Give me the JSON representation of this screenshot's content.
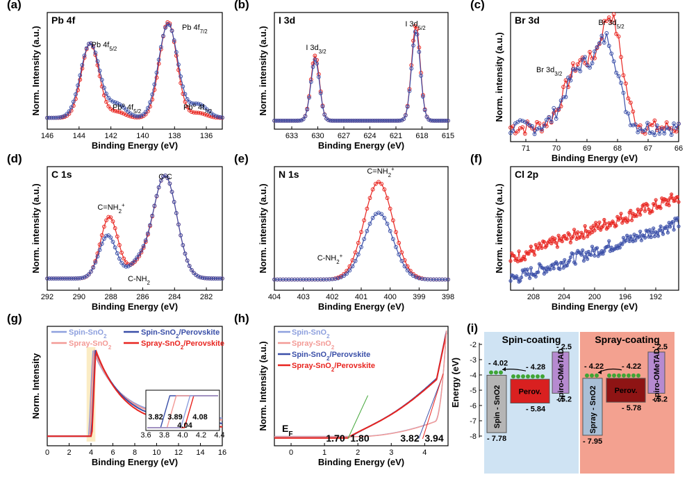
{
  "colors": {
    "red": "#e8241f",
    "blue": "#3a4fa8",
    "lightblue": "#8ea0de",
    "lightred": "#f39a96",
    "green": "#3fa535",
    "box": "#555555"
  },
  "chart_data": [
    {
      "panel": "(a)",
      "type": "line",
      "title": "Pb 4f",
      "xlabel": "Binding Energy (eV)",
      "ylabel": "Norm. Intensity (a.u.)",
      "xlim": [
        146,
        135
      ],
      "ylim": [
        0,
        1.05
      ],
      "xticks": [
        "146",
        "144",
        "142",
        "140",
        "138",
        "136"
      ],
      "annotations": [
        "Pb 4f5/2",
        "Pb 4f7/2",
        "Pbo 4f5/2",
        "Pbo 4f7/2"
      ],
      "series": [
        {
          "color": "red",
          "peaks": [
            [
              143.3,
              0.78,
              0.55
            ],
            [
              138.4,
              1.0,
              0.55
            ],
            [
              141.6,
              0.06,
              0.5
            ],
            [
              136.5,
              0.05,
              0.5
            ]
          ]
        },
        {
          "color": "blue",
          "peaks": [
            [
              143.3,
              0.78,
              0.6
            ],
            [
              138.4,
              0.98,
              0.6
            ],
            [
              141.6,
              0.14,
              0.55
            ],
            [
              136.5,
              0.14,
              0.55
            ]
          ]
        }
      ]
    },
    {
      "panel": "(b)",
      "type": "line",
      "title": "I 3d",
      "xlabel": "Binding Energy (eV)",
      "ylabel": "Norm. intensity (a.u.)",
      "xlim": [
        635,
        615
      ],
      "ylim": [
        0,
        1.05
      ],
      "xticks": [
        "633",
        "630",
        "627",
        "624",
        "621",
        "618",
        "615"
      ],
      "annotations": [
        "I 3d3/2",
        "I 3d5/2"
      ],
      "series": [
        {
          "color": "red",
          "peaks": [
            [
              630.3,
              0.68,
              0.5
            ],
            [
              618.7,
              1.0,
              0.5
            ]
          ]
        },
        {
          "color": "blue",
          "peaks": [
            [
              630.3,
              0.64,
              0.5
            ],
            [
              618.7,
              0.94,
              0.5
            ]
          ]
        }
      ]
    },
    {
      "panel": "(c)",
      "type": "line",
      "title": "Br 3d",
      "xlabel": "Binding Energy (eV)",
      "ylabel": "Norm. intensity (a.u.)",
      "xlim": [
        71.5,
        66
      ],
      "ylim": [
        0,
        1.05
      ],
      "xticks": [
        "71",
        "70",
        "69",
        "68",
        "67",
        "66"
      ],
      "annotations": [
        "Br 3d3/2",
        "Br 3d5/2"
      ],
      "series": [
        {
          "color": "red",
          "peaks": [
            [
              69.2,
              0.6,
              0.5
            ],
            [
              68.2,
              0.95,
              0.35
            ]
          ]
        },
        {
          "color": "blue",
          "peaks": [
            [
              69.2,
              0.55,
              0.5
            ],
            [
              68.3,
              0.7,
              0.35
            ]
          ]
        }
      ]
    },
    {
      "panel": "(d)",
      "type": "line",
      "title": "C 1s",
      "xlabel": "Binding Energy (eV)",
      "ylabel": "Norm. intensity (a.u.)",
      "xlim": [
        292,
        281
      ],
      "ylim": [
        0,
        1.05
      ],
      "xticks": [
        "292",
        "290",
        "288",
        "286",
        "284",
        "282"
      ],
      "annotations": [
        "C-C",
        "C=NH2+",
        "C-NH2"
      ],
      "series": [
        {
          "color": "red",
          "peaks": [
            [
              288.1,
              0.6,
              0.55
            ],
            [
              284.6,
              1.0,
              0.75
            ],
            [
              286.3,
              0.12,
              0.6
            ]
          ]
        },
        {
          "color": "blue",
          "peaks": [
            [
              288.2,
              0.42,
              0.55
            ],
            [
              284.6,
              1.0,
              0.75
            ],
            [
              286.3,
              0.14,
              0.6
            ]
          ]
        }
      ]
    },
    {
      "panel": "(e)",
      "type": "line",
      "title": "N 1s",
      "xlabel": "Binding Energy (eV)",
      "ylabel": "Norm. intensity (a.u.)",
      "xlim": [
        404,
        398
      ],
      "ylim": [
        0,
        1.05
      ],
      "xticks": [
        "404",
        "403",
        "402",
        "401",
        "400",
        "399",
        "398"
      ],
      "annotations": [
        "C=NH2+",
        "C-NH2+"
      ],
      "series": [
        {
          "color": "red",
          "peaks": [
            [
              400.4,
              0.95,
              0.5
            ]
          ]
        },
        {
          "color": "blue",
          "peaks": [
            [
              400.4,
              0.65,
              0.5
            ]
          ]
        }
      ]
    },
    {
      "panel": "(f)",
      "type": "scatter",
      "title": "Cl 2p",
      "xlabel": "Binding Energy (eV)",
      "ylabel": "Norm. intensity (a.u.)",
      "xlim": [
        211,
        189
      ],
      "ylim": [
        0,
        1.05
      ],
      "xticks": [
        "208",
        "204",
        "200",
        "196",
        "192"
      ],
      "series": [
        {
          "color": "red",
          "linear": [
            0.25,
            0.85
          ]
        },
        {
          "color": "blue",
          "linear": [
            0.05,
            0.6
          ]
        }
      ]
    },
    {
      "panel": "(g)",
      "type": "line",
      "xlabel": "Binding Energy (eV)",
      "ylabel": "Norm. Intensity",
      "xlim": [
        0,
        16
      ],
      "xticks": [
        "0",
        "2",
        "4",
        "6",
        "8",
        "10",
        "12",
        "14",
        "16"
      ],
      "legend": [
        "Spin-SnO2",
        "Spray-SnO2",
        "Spin-SnO2/Perovskite",
        "Spray-SnO2/Perovskite"
      ],
      "inset": {
        "xlim": [
          3.6,
          4.4
        ],
        "xticks": [
          "3.6",
          "3.8",
          "4.0",
          "4.2",
          "4.4"
        ],
        "onsets": [
          "3.82",
          "3.89",
          "4.08",
          "4.04"
        ]
      },
      "series": [
        {
          "name": "Spin-SnO2",
          "color": "lightblue",
          "onset": 3.82
        },
        {
          "name": "Spray-SnO2",
          "color": "lightred",
          "onset": 3.89
        },
        {
          "name": "Spin-SnO2/Perovskite",
          "color": "blue",
          "onset": 4.04
        },
        {
          "name": "Spray-SnO2/Perovskite",
          "color": "red",
          "onset": 4.08
        }
      ]
    },
    {
      "panel": "(h)",
      "type": "line",
      "xlabel": "Binding Energy (eV)",
      "ylabel": "Norm. Intensity (a.u.)",
      "xlim": [
        -0.5,
        4.7
      ],
      "xticks": [
        "0",
        "1",
        "2",
        "3",
        "4"
      ],
      "ef_label": "EF",
      "values_shown": [
        "1.70",
        "1.80",
        "3.82",
        "3.94"
      ],
      "legend": [
        "Spin-SnO2",
        "Spray-SnO2",
        "Spin-SnO2/Perovskite",
        "Spray-SnO2/Perovskite"
      ]
    },
    {
      "panel": "(i)",
      "type": "diagram",
      "ylabel": "Energy (eV)",
      "yticks": [
        "-2",
        "-3",
        "-4",
        "-5",
        "-6",
        "-7",
        "-8"
      ],
      "spin": {
        "title": "Spin-coating",
        "layer1": "Spin - SnO2",
        "layer2": "Perov.",
        "layer3": "Spiro-OMeTAD",
        "values": [
          "- 4.02",
          "- 4.28",
          "- 2.5",
          "- 5.2",
          "- 5.84",
          "- 7.78"
        ]
      },
      "spray": {
        "title": "Spray-coating",
        "layer1": "Spray - SnO2",
        "layer2": "Perov.",
        "layer3": "Spiro-OMeTAD",
        "values": [
          "- 4.22",
          "- 4.22",
          "- 2.5",
          "- 5.2",
          "- 5.78",
          "- 7.95"
        ]
      }
    }
  ]
}
